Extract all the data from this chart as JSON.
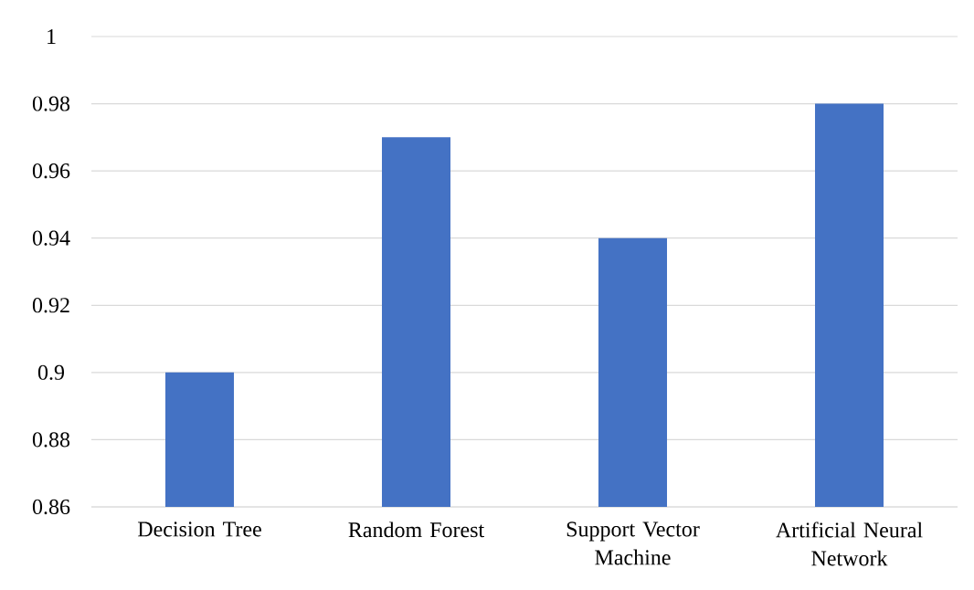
{
  "chart_data": {
    "type": "bar",
    "categories": [
      "Decision Tree",
      "Random Forest",
      "Support Vector Machine",
      "Artificial Neural Network"
    ],
    "values": [
      0.9,
      0.97,
      0.94,
      0.98
    ],
    "color": "#4472c4",
    "ylim": [
      0.86,
      1
    ],
    "yticks": [
      0.86,
      0.88,
      0.9,
      0.92,
      0.94,
      0.96,
      0.98,
      1
    ],
    "grid": "y"
  }
}
